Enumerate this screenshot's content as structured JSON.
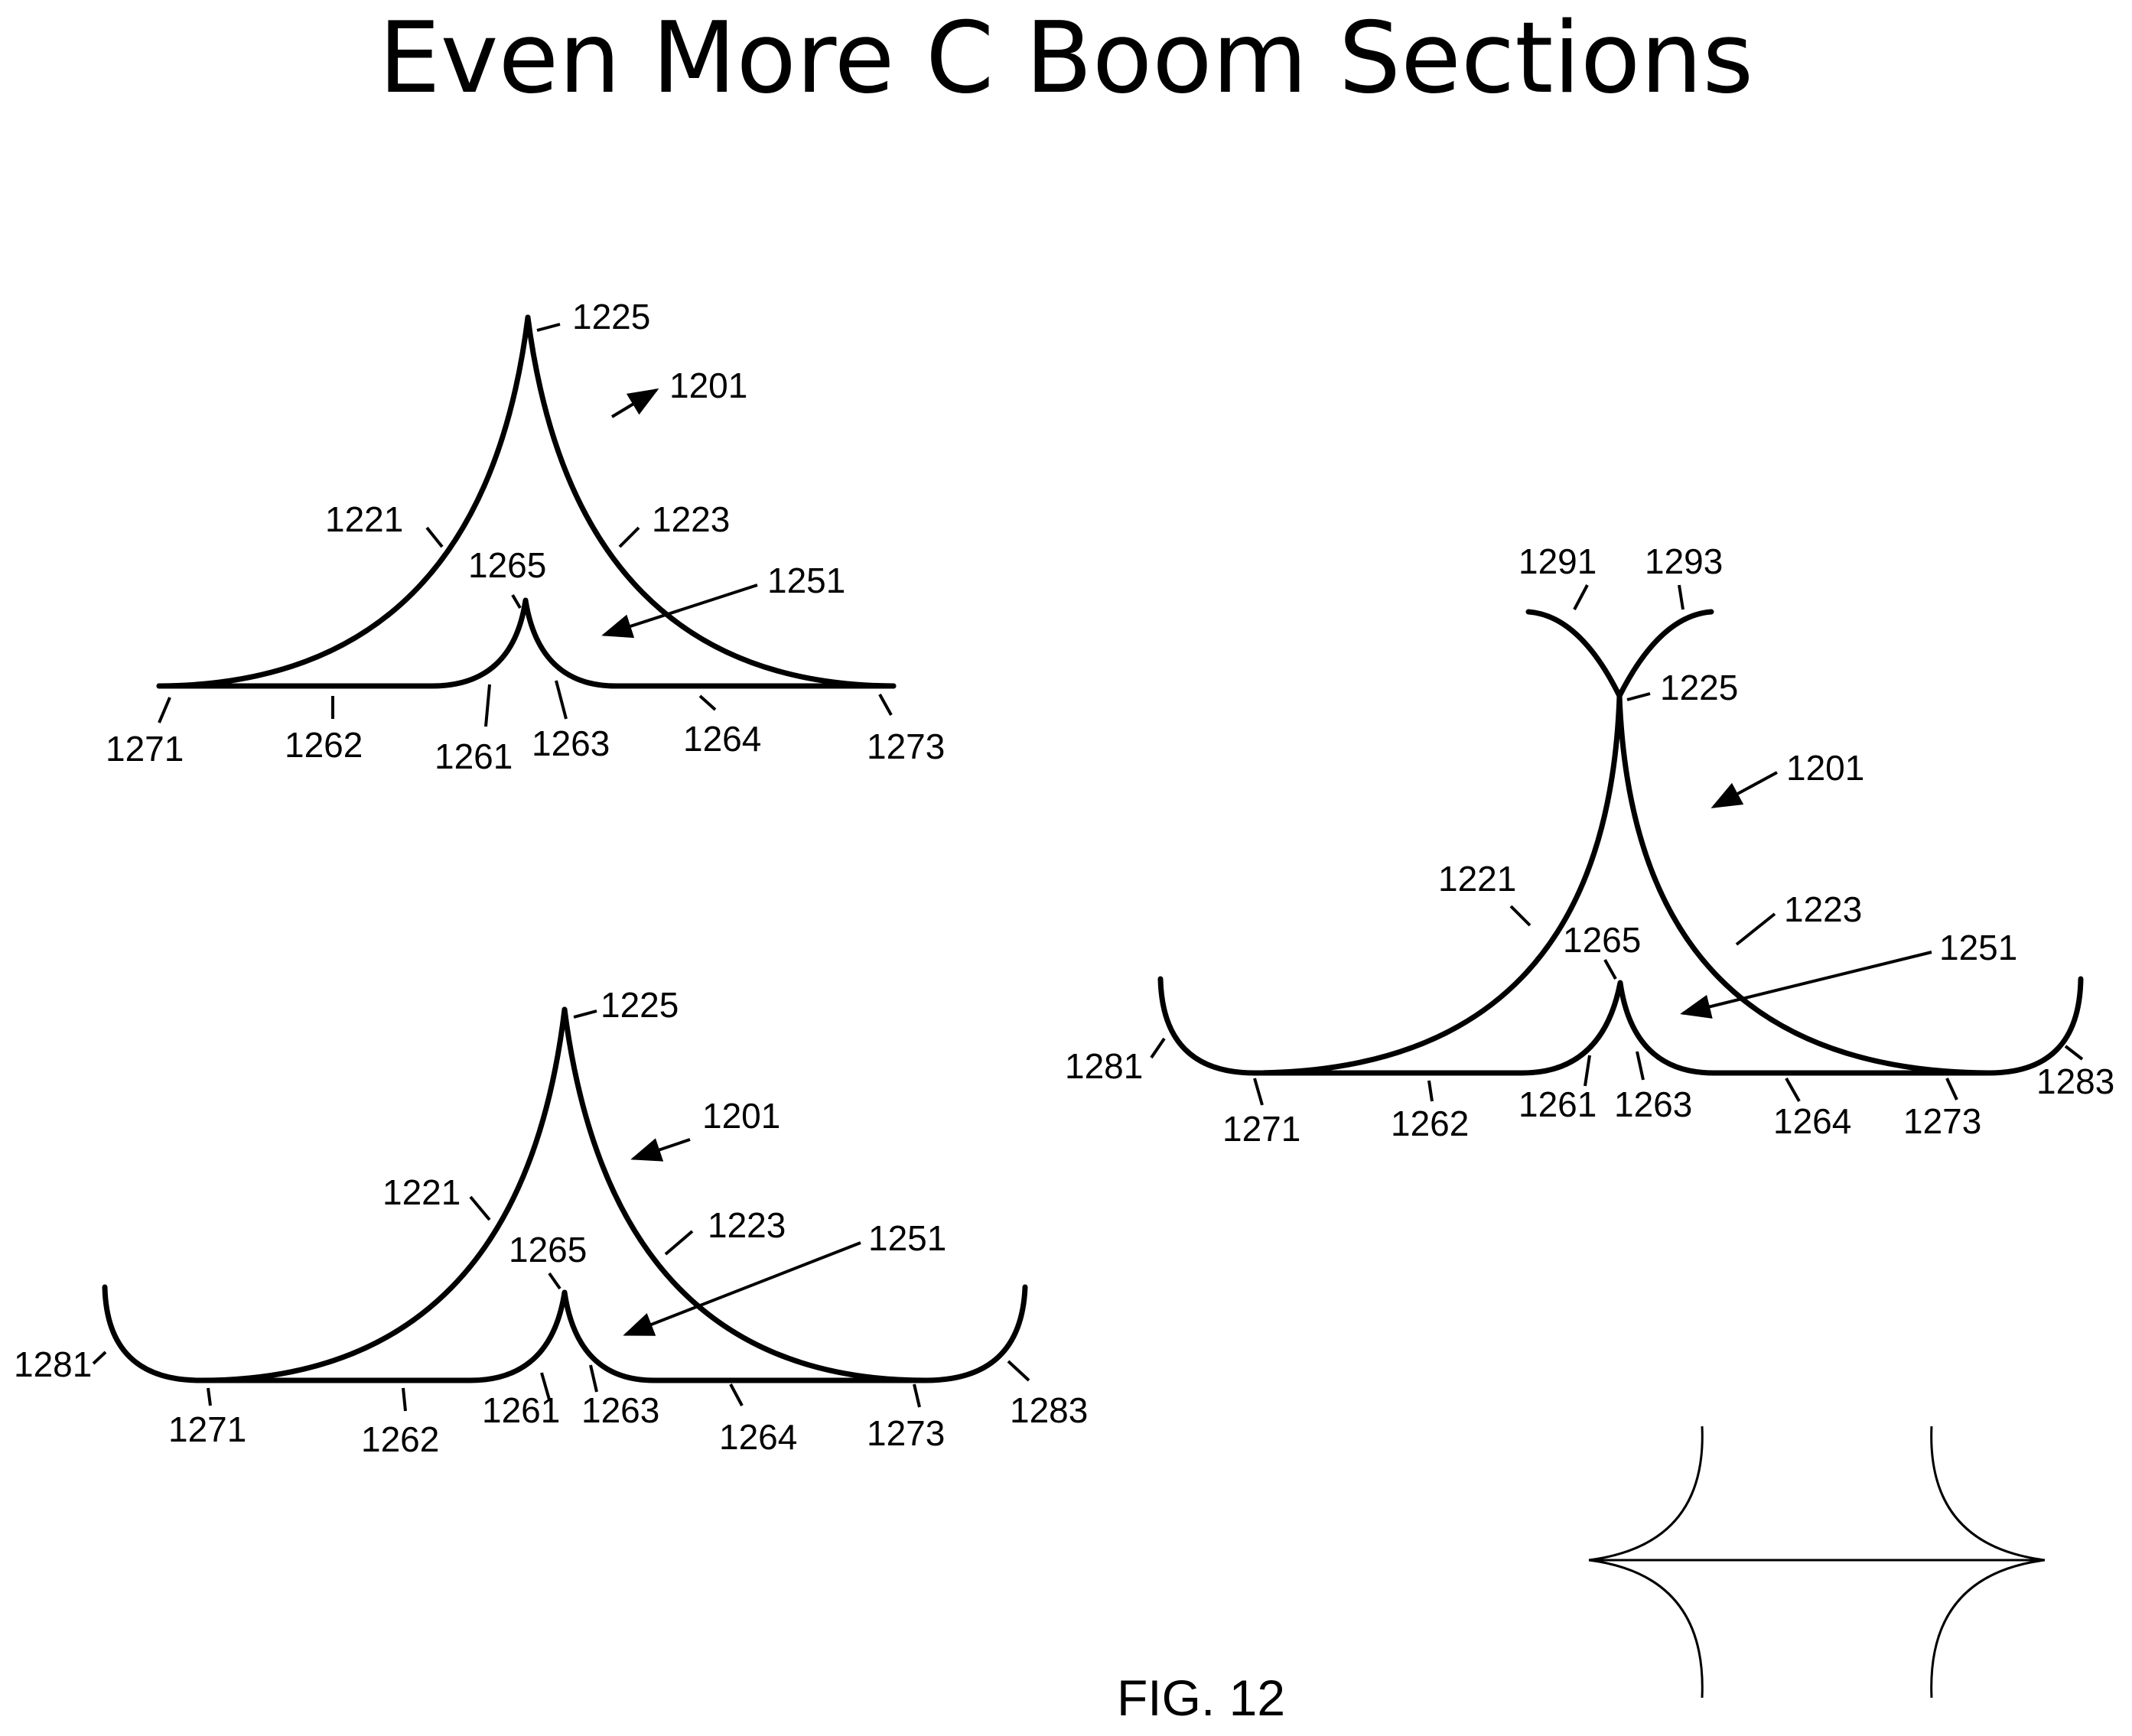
{
  "title": "Even More C Boom Sections",
  "caption": "FIG. 12",
  "colors": {
    "line": "#000000",
    "background": "#ffffff"
  },
  "figure_a": {
    "l1225": "1225",
    "l1201": "1201",
    "l1221": "1221",
    "l1223": "1223",
    "l1265": "1265",
    "l1251": "1251",
    "l1271": "1271",
    "l1262": "1262",
    "l1261": "1261",
    "l1263": "1263",
    "l1264": "1264",
    "l1273": "1273"
  },
  "figure_b": {
    "l1225": "1225",
    "l1201": "1201",
    "l1221": "1221",
    "l1223": "1223",
    "l1265": "1265",
    "l1251": "1251",
    "l1281": "1281",
    "l1271": "1271",
    "l1262": "1262",
    "l1261": "1261",
    "l1263": "1263",
    "l1264": "1264",
    "l1273": "1273",
    "l1283": "1283"
  },
  "figure_c": {
    "l1291": "1291",
    "l1293": "1293",
    "l1225": "1225",
    "l1201": "1201",
    "l1221": "1221",
    "l1223": "1223",
    "l1265": "1265",
    "l1251": "1251",
    "l1281": "1281",
    "l1271": "1271",
    "l1262": "1262",
    "l1261": "1261",
    "l1263": "1263",
    "l1264": "1264",
    "l1273": "1273",
    "l1283": "1283"
  }
}
